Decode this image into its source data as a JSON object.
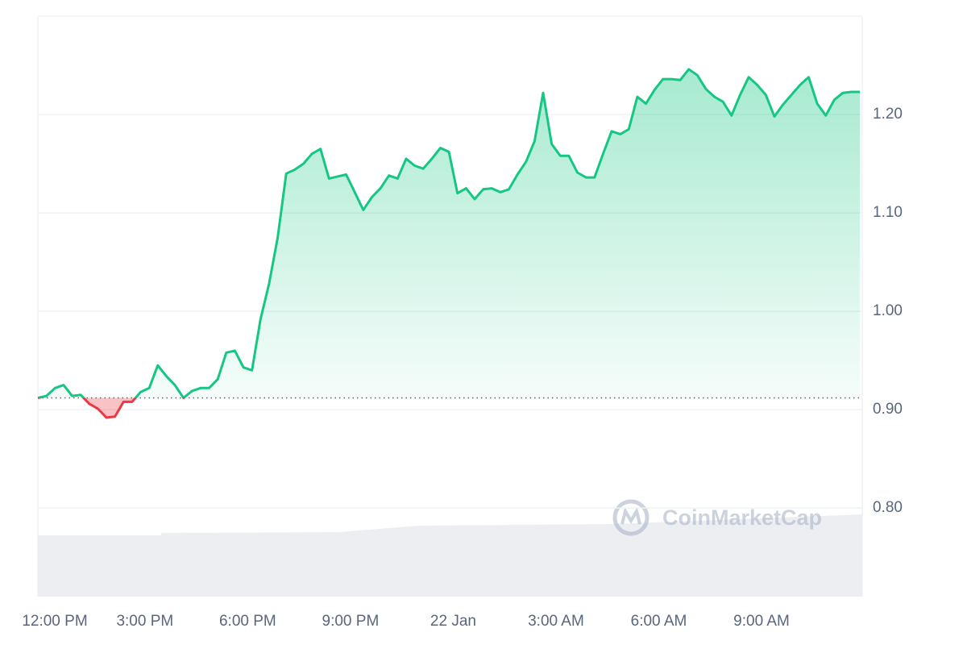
{
  "chart_data": {
    "type": "line",
    "watermark": "CoinMarketCap",
    "baseline": 0.912,
    "xlim": [
      11.875,
      35.94
    ],
    "ylim": [
      0.71,
      1.3
    ],
    "xticks": [
      {
        "value": 12,
        "label": "12:00 PM"
      },
      {
        "value": 15,
        "label": "3:00 PM"
      },
      {
        "value": 18,
        "label": "6:00 PM"
      },
      {
        "value": 21,
        "label": "9:00 PM"
      },
      {
        "value": 24,
        "label": "22 Jan"
      },
      {
        "value": 27,
        "label": "3:00 AM"
      },
      {
        "value": 30,
        "label": "6:00 AM"
      },
      {
        "value": 33,
        "label": "9:00 AM"
      }
    ],
    "yticks": [
      {
        "value": 0.8,
        "label": "0.80"
      },
      {
        "value": 0.9,
        "label": "0.90"
      },
      {
        "value": 1.0,
        "label": "1.00"
      },
      {
        "value": 1.1,
        "label": "1.10"
      },
      {
        "value": 1.2,
        "label": "1.20"
      }
    ],
    "grid": true,
    "up_color": "#16c784",
    "down_color": "#ea3943",
    "x": [
      11.875,
      12.125,
      12.375,
      12.625,
      12.875,
      13.125,
      13.375,
      13.625,
      13.875,
      14.125,
      14.375,
      14.625,
      14.875,
      15.125,
      15.375,
      15.625,
      15.875,
      16.125,
      16.375,
      16.625,
      16.875,
      17.125,
      17.375,
      17.625,
      17.875,
      18.125,
      18.375,
      18.625,
      18.875,
      19.125,
      19.375,
      19.625,
      19.875,
      20.125,
      20.375,
      20.625,
      20.875,
      21.125,
      21.375,
      21.625,
      21.875,
      22.125,
      22.375,
      22.625,
      22.875,
      23.125,
      23.375,
      23.625,
      23.875,
      24.125,
      24.375,
      24.625,
      24.875,
      25.125,
      25.375,
      25.625,
      25.875,
      26.125,
      26.375,
      26.625,
      26.875,
      27.125,
      27.375,
      27.625,
      27.875,
      28.125,
      28.375,
      28.625,
      28.875,
      29.125,
      29.375,
      29.625,
      29.875,
      30.125,
      30.375,
      30.625,
      30.875,
      31.125,
      31.375,
      31.625,
      31.875,
      32.125,
      32.375,
      32.625,
      32.875,
      33.125,
      33.375,
      33.625,
      33.875,
      34.125,
      34.375,
      34.625,
      34.875,
      35.125,
      35.375,
      35.625,
      35.875
    ],
    "values": [
      0.912,
      0.914,
      0.922,
      0.925,
      0.914,
      0.915,
      0.906,
      0.901,
      0.892,
      0.893,
      0.908,
      0.908,
      0.918,
      0.922,
      0.945,
      0.934,
      0.925,
      0.912,
      0.919,
      0.922,
      0.922,
      0.931,
      0.958,
      0.96,
      0.943,
      0.94,
      0.992,
      1.028,
      1.075,
      1.14,
      1.144,
      1.15,
      1.16,
      1.165,
      1.135,
      1.137,
      1.139,
      1.121,
      1.103,
      1.116,
      1.125,
      1.138,
      1.135,
      1.155,
      1.148,
      1.145,
      1.155,
      1.166,
      1.162,
      1.12,
      1.125,
      1.114,
      1.124,
      1.125,
      1.121,
      1.124,
      1.139,
      1.152,
      1.173,
      1.222,
      1.17,
      1.158,
      1.158,
      1.141,
      1.136,
      1.136,
      1.16,
      1.183,
      1.18,
      1.185,
      1.218,
      1.211,
      1.225,
      1.236,
      1.236,
      1.235,
      1.246,
      1.24,
      1.226,
      1.218,
      1.213,
      1.199,
      1.22,
      1.238,
      1.23,
      1.22,
      1.198,
      1.21,
      1.22,
      1.23,
      1.238,
      1.211,
      1.199,
      1.215,
      1.222,
      1.223,
      1.223
    ]
  }
}
